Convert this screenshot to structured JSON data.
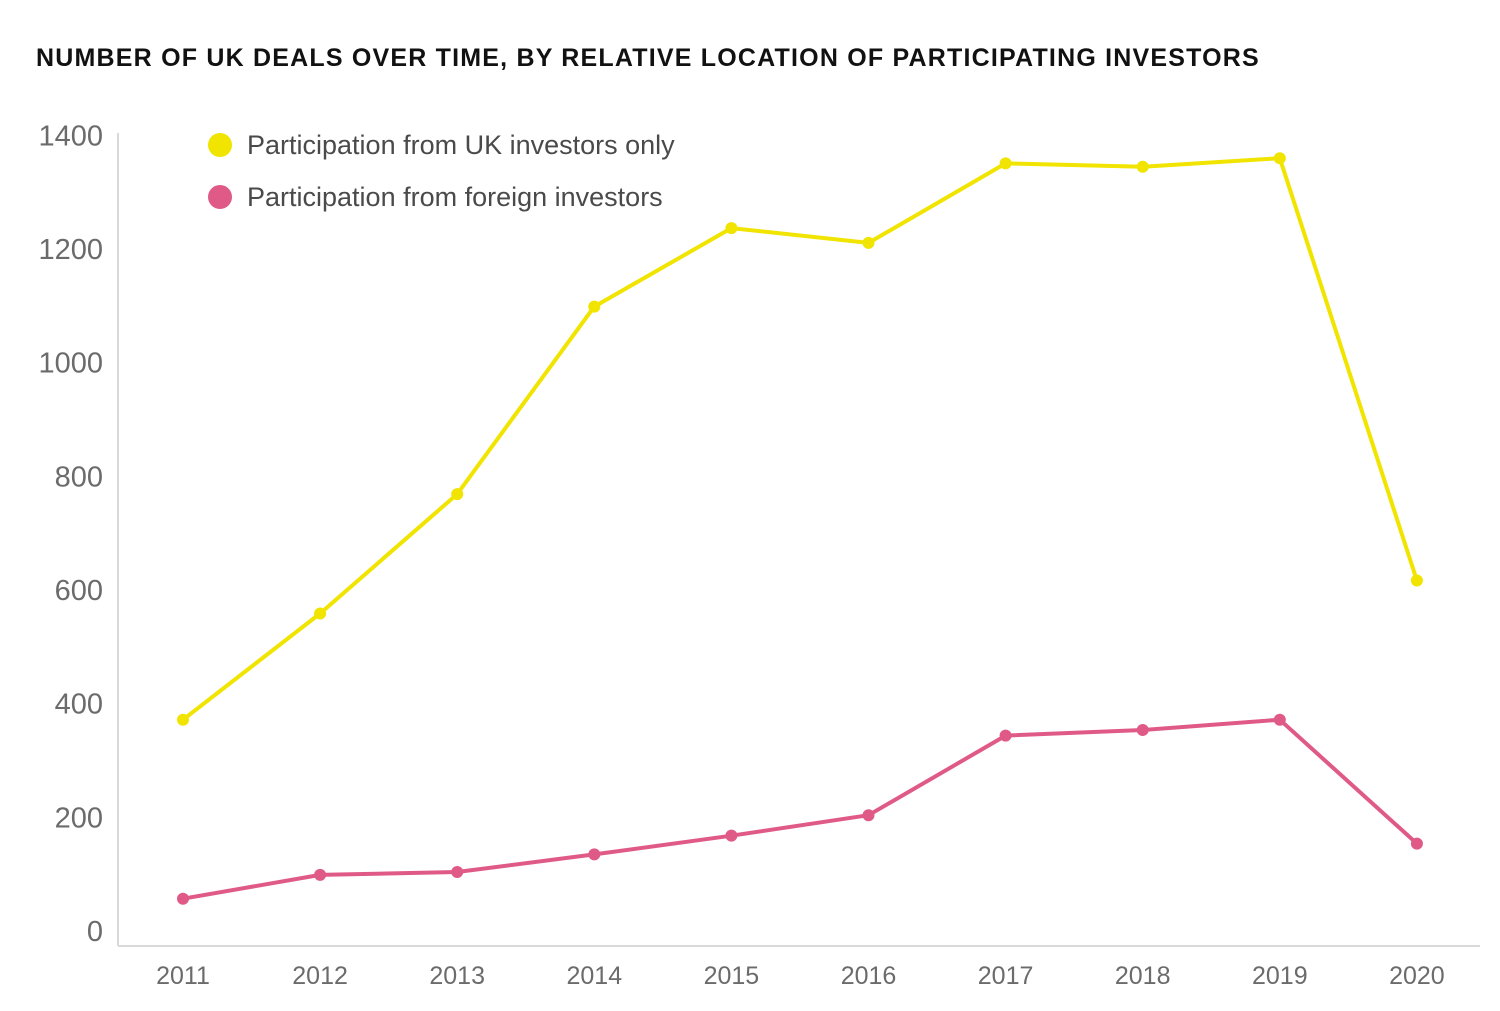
{
  "chart_data": {
    "type": "line",
    "title": "NUMBER OF UK DEALS OVER TIME, BY RELATIVE LOCATION OF PARTICIPATING INVESTORS",
    "xlabel": "",
    "ylabel": "",
    "x": [
      "2011",
      "2012",
      "2013",
      "2014",
      "2015",
      "2016",
      "2017",
      "2018",
      "2019",
      "2020"
    ],
    "ylim": [
      0,
      1400
    ],
    "yticks": [
      "0",
      "200",
      "400",
      "600",
      "800",
      "1000",
      "1200",
      "1400"
    ],
    "grid": false,
    "legend_position": "top-left",
    "series": [
      {
        "name": "Participation from UK investors only",
        "color": "#f0e400",
        "values": [
          370,
          557,
          767,
          1097,
          1235,
          1209,
          1349,
          1343,
          1358,
          615
        ]
      },
      {
        "name": "Participation from foreign investors",
        "color": "#e05a87",
        "values": [
          55,
          97,
          102,
          133,
          166,
          202,
          342,
          352,
          370,
          152
        ]
      }
    ]
  }
}
